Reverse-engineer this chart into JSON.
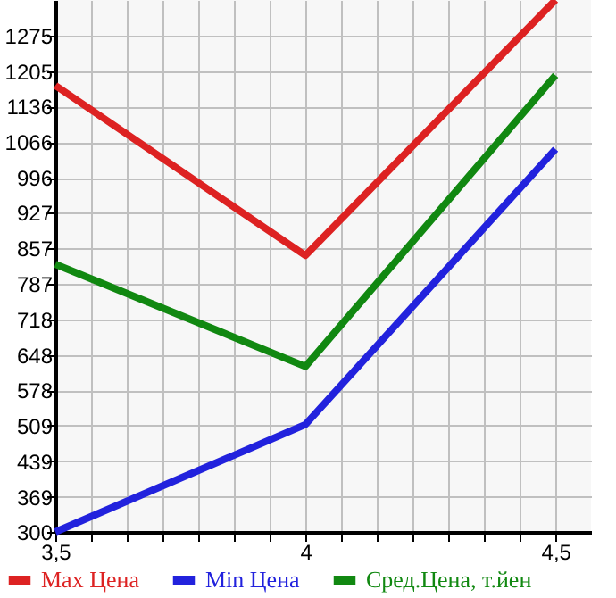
{
  "chart_data": {
    "type": "line",
    "x": [
      3.5,
      4,
      4.5
    ],
    "series": [
      {
        "name": "Max Цена",
        "color": "#dd2222",
        "values": [
          1177,
          843,
          1345
        ]
      },
      {
        "name": "Min Цена",
        "color": "#2222dd",
        "values": [
          300,
          511,
          1052
        ]
      },
      {
        "name": "Сред.Цена, т.йен",
        "color": "#118811",
        "values": [
          826,
          625,
          1197
        ]
      }
    ],
    "xlim": [
      3.5,
      4.571
    ],
    "xticks": [
      {
        "value": 3.5,
        "label": "3,5"
      },
      {
        "value": 3.571,
        "label": null
      },
      {
        "value": 3.643,
        "label": null
      },
      {
        "value": 3.714,
        "label": null
      },
      {
        "value": 3.786,
        "label": null
      },
      {
        "value": 3.857,
        "label": null
      },
      {
        "value": 3.929,
        "label": null
      },
      4,
      {
        "value": 4.071,
        "label": null
      },
      {
        "value": 4.143,
        "label": null
      },
      {
        "value": 4.214,
        "label": null
      },
      {
        "value": 4.286,
        "label": null
      },
      {
        "value": 4.357,
        "label": null
      },
      {
        "value": 4.429,
        "label": null
      },
      {
        "value": 4.5,
        "label": "4,5"
      }
    ],
    "ylim": [
      300,
      1345
    ],
    "yticks": [
      300,
      369,
      439,
      509,
      578,
      648,
      718,
      787,
      857,
      927,
      996,
      1066,
      1136,
      1205,
      1275
    ],
    "grid": true,
    "legend": "bottom",
    "marker": "none",
    "line_style": "solid"
  }
}
